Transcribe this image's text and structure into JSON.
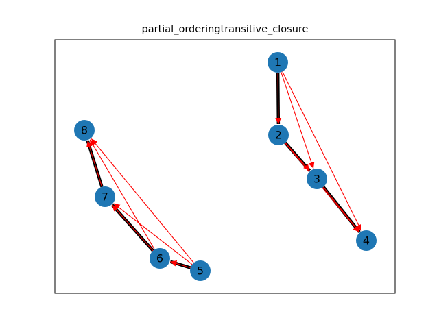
{
  "title": "partial_orderingtransitive_closure",
  "colors": {
    "node_fill": "#1f77b4",
    "base_edge": "#000000",
    "closure_edge": "#ff0000",
    "axes_frame": "#000000",
    "background": "#ffffff"
  },
  "nodes": [
    {
      "id": "1",
      "label": "1"
    },
    {
      "id": "2",
      "label": "2"
    },
    {
      "id": "3",
      "label": "3"
    },
    {
      "id": "4",
      "label": "4"
    },
    {
      "id": "5",
      "label": "5"
    },
    {
      "id": "6",
      "label": "6"
    },
    {
      "id": "7",
      "label": "7"
    },
    {
      "id": "8",
      "label": "8"
    }
  ],
  "base_edges": [
    {
      "from": "1",
      "to": "2"
    },
    {
      "from": "2",
      "to": "3"
    },
    {
      "from": "3",
      "to": "4"
    },
    {
      "from": "5",
      "to": "6"
    },
    {
      "from": "6",
      "to": "7"
    },
    {
      "from": "7",
      "to": "8"
    }
  ],
  "closure_edges": [
    {
      "from": "1",
      "to": "2"
    },
    {
      "from": "1",
      "to": "3"
    },
    {
      "from": "1",
      "to": "4"
    },
    {
      "from": "2",
      "to": "3"
    },
    {
      "from": "2",
      "to": "4"
    },
    {
      "from": "3",
      "to": "4"
    },
    {
      "from": "5",
      "to": "6"
    },
    {
      "from": "5",
      "to": "7"
    },
    {
      "from": "5",
      "to": "8"
    },
    {
      "from": "6",
      "to": "7"
    },
    {
      "from": "6",
      "to": "8"
    },
    {
      "from": "7",
      "to": "8"
    }
  ]
}
